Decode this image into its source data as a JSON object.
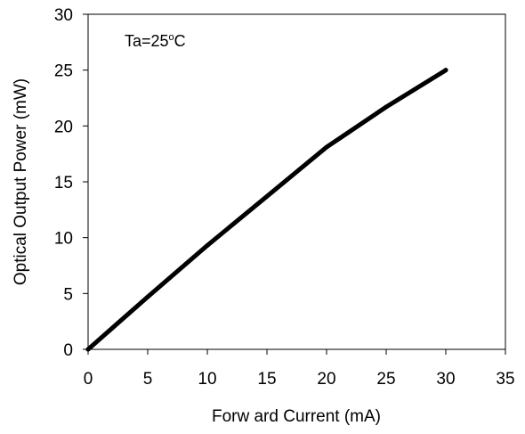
{
  "chart_data": {
    "type": "line",
    "title": "",
    "xlabel": "Forw ard Current  (mA)",
    "ylabel": "Optical Output Power  (mW)",
    "xlim": [
      0,
      35
    ],
    "ylim": [
      0,
      30
    ],
    "xticks": [
      "0",
      "5",
      "10",
      "15",
      "20",
      "25",
      "30",
      "35"
    ],
    "yticks": [
      "0",
      "5",
      "10",
      "15",
      "20",
      "25",
      "30"
    ],
    "grid": false,
    "annotation": {
      "prefix": "Ta=25",
      "sup": "o",
      "suffix": "C"
    },
    "series": [
      {
        "x": [
          0,
          5,
          10,
          15,
          20,
          25,
          30
        ],
        "y": [
          0,
          4.7,
          9.3,
          13.7,
          18.1,
          21.7,
          25.0
        ],
        "color": "#000000"
      }
    ]
  }
}
